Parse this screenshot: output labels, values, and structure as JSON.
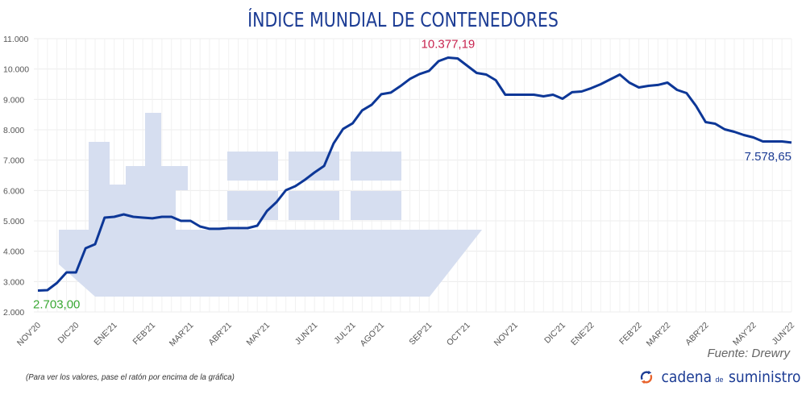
{
  "title": "ÍNDICE MUNDIAL DE CONTENEDORES",
  "source": "Fuente: Drewry",
  "note": "(Para ver los valores, pase el ratón por encima de la gráfica)",
  "logo": {
    "part1": "cadena",
    "part2": "de",
    "part3": "suministro",
    "icon": "cycle-arrows-icon"
  },
  "colors": {
    "line": "#0d3797",
    "ship": "#d6def0",
    "min_label": "#3aa834",
    "max_label": "#c8244f",
    "last_label": "#1c3c94",
    "grid": "#ececec"
  },
  "chart_data": {
    "type": "line",
    "title": "ÍNDICE MUNDIAL DE CONTENEDORES",
    "xlabel": "",
    "ylabel": "",
    "ylim": [
      2000,
      11000
    ],
    "yticks": [
      "2.000",
      "3.000",
      "4.000",
      "5.000",
      "6.000",
      "7.000",
      "8.000",
      "9.000",
      "10.000",
      "11.000"
    ],
    "ytick_values": [
      2000,
      3000,
      4000,
      5000,
      6000,
      7000,
      8000,
      9000,
      10000,
      11000
    ],
    "grid": true,
    "xtick_labels": [
      {
        "label": "NOV'20",
        "index": 0
      },
      {
        "label": "DIC'20",
        "index": 4
      },
      {
        "label": "ENE'21",
        "index": 8
      },
      {
        "label": "FEB'21",
        "index": 12
      },
      {
        "label": "MAR'21",
        "index": 16
      },
      {
        "label": "ABR'21",
        "index": 20
      },
      {
        "label": "MAY'21",
        "index": 24
      },
      {
        "label": "JUN'21",
        "index": 29
      },
      {
        "label": "JUL'21",
        "index": 33
      },
      {
        "label": "AGO'21",
        "index": 36
      },
      {
        "label": "SEP'21",
        "index": 41
      },
      {
        "label": "OCT'21",
        "index": 45
      },
      {
        "label": "NOV'21",
        "index": 50
      },
      {
        "label": "DIC'21",
        "index": 55
      },
      {
        "label": "ENE'22",
        "index": 58
      },
      {
        "label": "FEB'22",
        "index": 63
      },
      {
        "label": "MAR'22",
        "index": 66
      },
      {
        "label": "ABR'22",
        "index": 70
      },
      {
        "label": "MAY'22",
        "index": 75
      },
      {
        "label": "JUN'22",
        "index": 79
      }
    ],
    "series": [
      {
        "name": "Índice mundial de contenedores",
        "values": [
          2703,
          2717,
          2956,
          3301,
          3301,
          4098,
          4231,
          5107,
          5134,
          5213,
          5134,
          5107,
          5081,
          5134,
          5134,
          5001,
          5001,
          4815,
          4736,
          4736,
          4762,
          4762,
          4762,
          4842,
          5320,
          5612,
          6010,
          6143,
          6355,
          6594,
          6807,
          7550,
          8028,
          8214,
          8639,
          8825,
          9170,
          9223,
          9436,
          9675,
          9834,
          9940,
          10259,
          10377,
          10350,
          10111,
          9872,
          9819,
          9634,
          9156,
          9156,
          9156,
          9156,
          9103,
          9156,
          9023,
          9236,
          9262,
          9369,
          9501,
          9660,
          9819,
          9554,
          9395,
          9448,
          9475,
          9554,
          9315,
          9209,
          8784,
          8253,
          8200,
          8014,
          7934,
          7828,
          7748,
          7615,
          7615,
          7615,
          7579
        ],
        "color": "#0d3797"
      }
    ],
    "annotations": [
      {
        "text": "2.703,00",
        "index": 0,
        "value": 2703,
        "role": "min"
      },
      {
        "text": "10.377,19",
        "index": 43,
        "value": 10377.19,
        "role": "max"
      },
      {
        "text": "7.578,65",
        "index": 79,
        "value": 7578.65,
        "role": "last"
      }
    ]
  }
}
